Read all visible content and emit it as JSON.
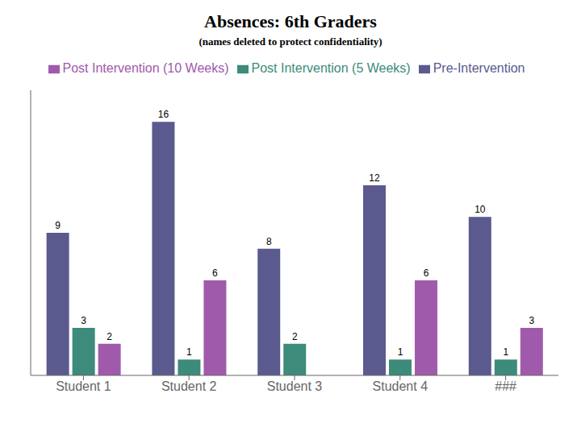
{
  "chart_data": {
    "type": "bar",
    "title": "Absences: 6th Graders",
    "subtitle": "(names deleted to protect confidentiality)",
    "categories": [
      "Student 1",
      "Student 2",
      "Student 3",
      "Student 4",
      "###"
    ],
    "series": [
      {
        "name": "Pre-Intervention",
        "color": "#5a5a8f",
        "values": [
          9,
          16,
          8,
          12,
          10
        ]
      },
      {
        "name": "Post Intervention (5 Weeks)",
        "color": "#3d8b7a",
        "values": [
          3,
          1,
          2,
          1,
          1
        ]
      },
      {
        "name": "Post Intervention (10 Weeks)",
        "color": "#a05aab",
        "values": [
          2,
          6,
          0,
          6,
          3
        ]
      }
    ],
    "ylim": [
      0,
      18
    ],
    "tick_labels": "x",
    "data_labels": true,
    "grid": false,
    "legend": "top"
  }
}
